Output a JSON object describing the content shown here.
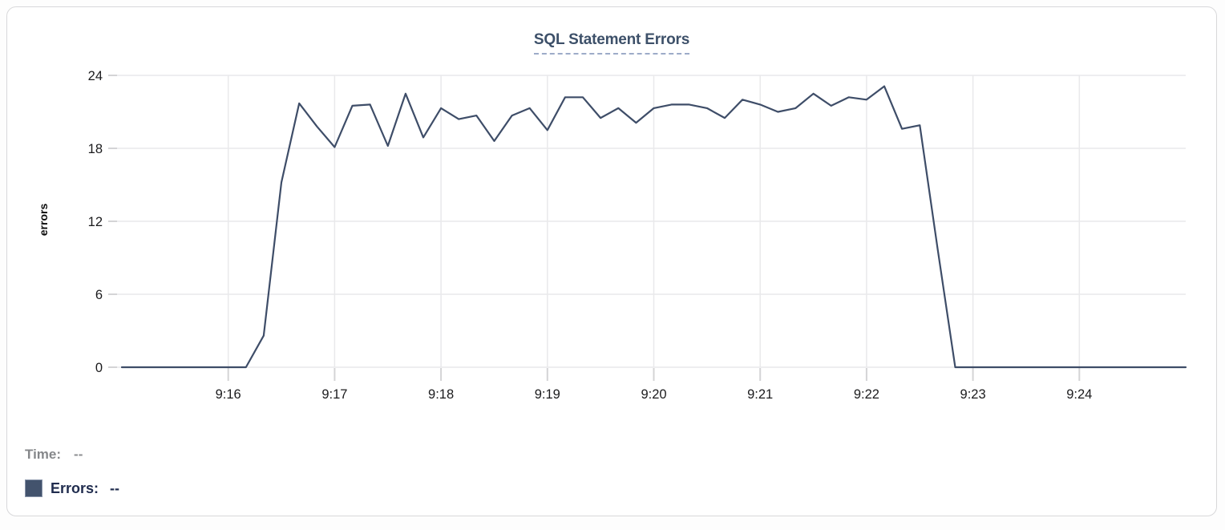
{
  "chart_data": {
    "type": "line",
    "title": "SQL Statement Errors",
    "xlabel": "",
    "ylabel": "errors",
    "ylim": [
      0,
      24
    ],
    "y_ticks": [
      0,
      6,
      12,
      18,
      24
    ],
    "x_ticks": [
      {
        "label": "9:16",
        "seconds": 60
      },
      {
        "label": "9:17",
        "seconds": 120
      },
      {
        "label": "9:18",
        "seconds": 180
      },
      {
        "label": "9:19",
        "seconds": 240
      },
      {
        "label": "9:20",
        "seconds": 300
      },
      {
        "label": "9:21",
        "seconds": 360
      },
      {
        "label": "9:22",
        "seconds": 420
      },
      {
        "label": "9:23",
        "seconds": 480
      },
      {
        "label": "9:24",
        "seconds": 540
      }
    ],
    "x_start": "9:15:00",
    "x_end": "9:25:00",
    "duration_seconds": 600,
    "grid": true,
    "legend_position": "bottom-left",
    "series": [
      {
        "name": "Errors",
        "color": "#3e4d68",
        "interval_seconds": 10,
        "values": [
          0,
          0,
          0,
          0,
          0,
          0,
          0,
          0,
          2.6,
          15.2,
          21.7,
          19.8,
          18.1,
          21.5,
          21.6,
          18.2,
          22.5,
          18.9,
          21.3,
          20.4,
          20.7,
          18.6,
          20.7,
          21.3,
          19.5,
          22.2,
          22.2,
          20.5,
          21.3,
          20.1,
          21.3,
          21.6,
          21.6,
          21.3,
          20.5,
          22,
          21.6,
          21,
          21.3,
          22.5,
          21.5,
          22.2,
          22,
          23.1,
          19.6,
          19.9,
          9.8,
          0,
          0,
          0,
          0,
          0,
          0,
          0,
          0,
          0,
          0,
          0,
          0,
          0,
          0
        ]
      }
    ]
  },
  "tooltip": {
    "time_label": "Time:",
    "time_value": "--",
    "errors_label": "Errors:",
    "errors_value": "--"
  },
  "colors": {
    "line": "#3e4d68",
    "title": "#3d5069",
    "title_underline": "#9dabc8",
    "legend_time_text": "#85878a",
    "legend_errors_text": "#202c4e",
    "legend_swatch": "#43536d",
    "gridline": "#e9e9eb",
    "tick_stub": "#d4d4d6",
    "tick_label": "#1b1b1d"
  }
}
